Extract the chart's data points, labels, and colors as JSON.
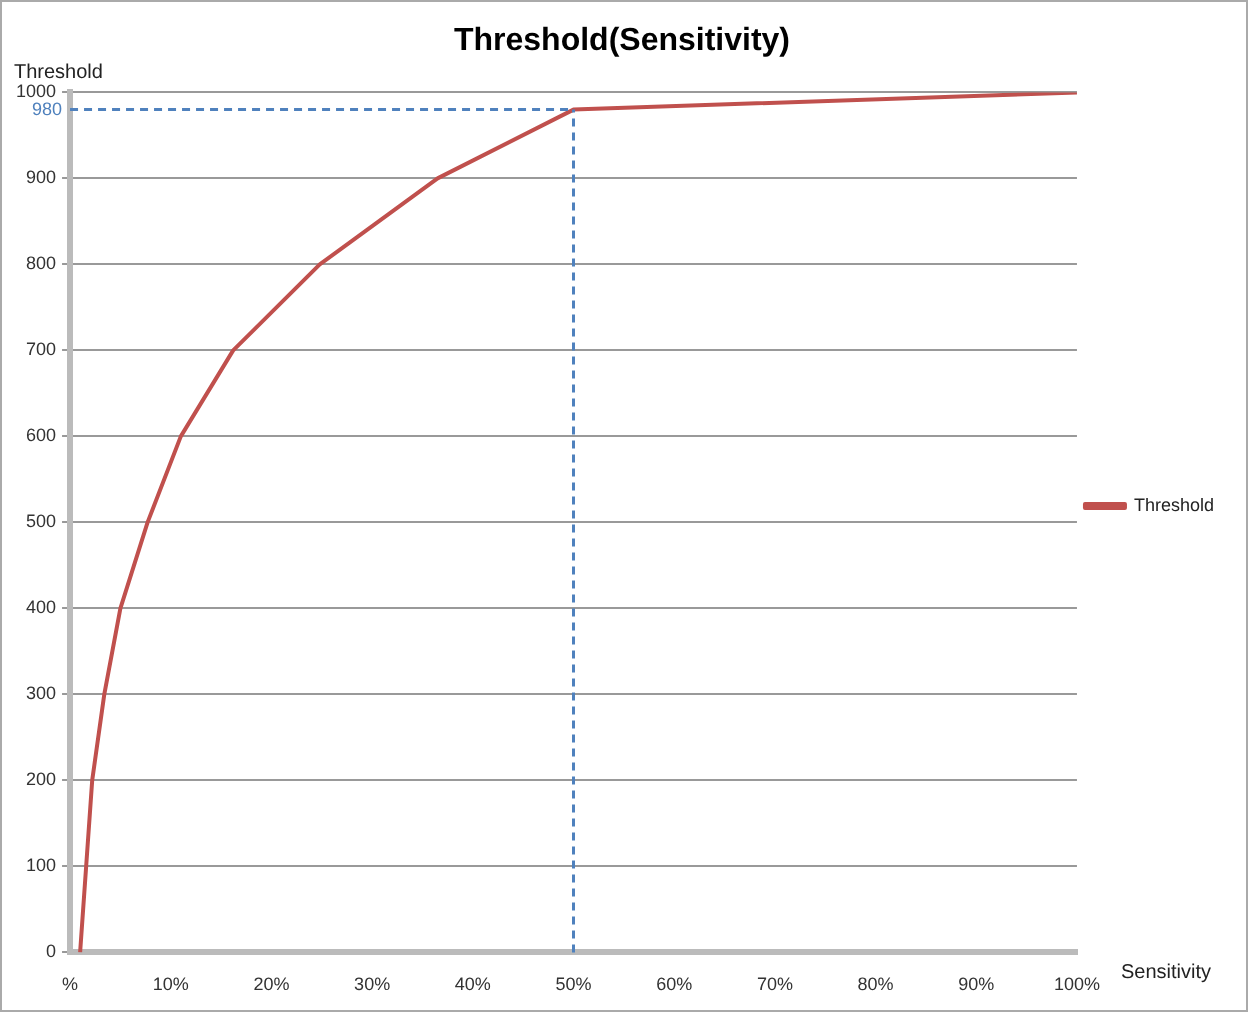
{
  "chart_data": {
    "type": "line",
    "title": "Threshold(Sensitivity)",
    "xlabel": "Sensitivity",
    "ylabel": "Threshold",
    "x": [
      1,
      1.6,
      2.2,
      3.4,
      5,
      7.7,
      11,
      16.2,
      24.8,
      36.5,
      50,
      100
    ],
    "series": [
      {
        "name": "Threshold",
        "color": "#c0504d",
        "values": [
          0,
          100,
          200,
          300,
          400,
          500,
          600,
          700,
          800,
          900,
          980,
          1000
        ]
      }
    ],
    "xlim": [
      0,
      100
    ],
    "xticks": [
      {
        "value": 0,
        "label": "%"
      },
      {
        "value": 10,
        "label": "10%"
      },
      {
        "value": 20,
        "label": "20%"
      },
      {
        "value": 30,
        "label": "30%"
      },
      {
        "value": 40,
        "label": "40%"
      },
      {
        "value": 50,
        "label": "50%"
      },
      {
        "value": 60,
        "label": "60%"
      },
      {
        "value": 70,
        "label": "70%"
      },
      {
        "value": 80,
        "label": "80%"
      },
      {
        "value": 90,
        "label": "90%"
      },
      {
        "value": 100,
        "label": "100%"
      }
    ],
    "ylim": [
      0,
      1000
    ],
    "yticks": [
      0,
      100,
      200,
      300,
      400,
      500,
      600,
      700,
      800,
      900,
      1000
    ],
    "ref_lines": [
      {
        "axis": "y",
        "value": 980,
        "label": "980",
        "color": "#4f81bd",
        "line_style": "dashed"
      },
      {
        "axis": "x",
        "value": 50,
        "label": null,
        "color": "#4f81bd",
        "line_style": "dashed"
      }
    ],
    "grid": "y",
    "legend": "right",
    "marker": "none",
    "line_style": "solid"
  }
}
